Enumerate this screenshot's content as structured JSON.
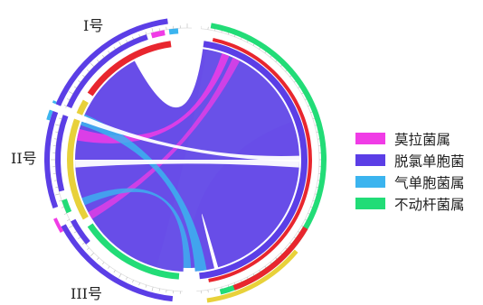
{
  "groups": [
    {
      "id": "I",
      "label": "I号"
    },
    {
      "id": "II",
      "label": "II号"
    },
    {
      "id": "III",
      "label": "III号"
    }
  ],
  "legend": [
    {
      "label": "莫拉菌属",
      "color": "#f03ce6"
    },
    {
      "label": "脱氯单胞菌",
      "color": "#5b3ee6"
    },
    {
      "label": "气单胞菌属",
      "color": "#3bb4ef"
    },
    {
      "label": "不动杆菌属",
      "color": "#22dc77"
    }
  ],
  "colors": {
    "purple": "#5b3ee6",
    "magenta": "#f03ce6",
    "cyan": "#3bb4ef",
    "green": "#22dc77",
    "red": "#e8262e",
    "yellow": "#e8d13a",
    "gray": "#aaaaaa"
  }
}
